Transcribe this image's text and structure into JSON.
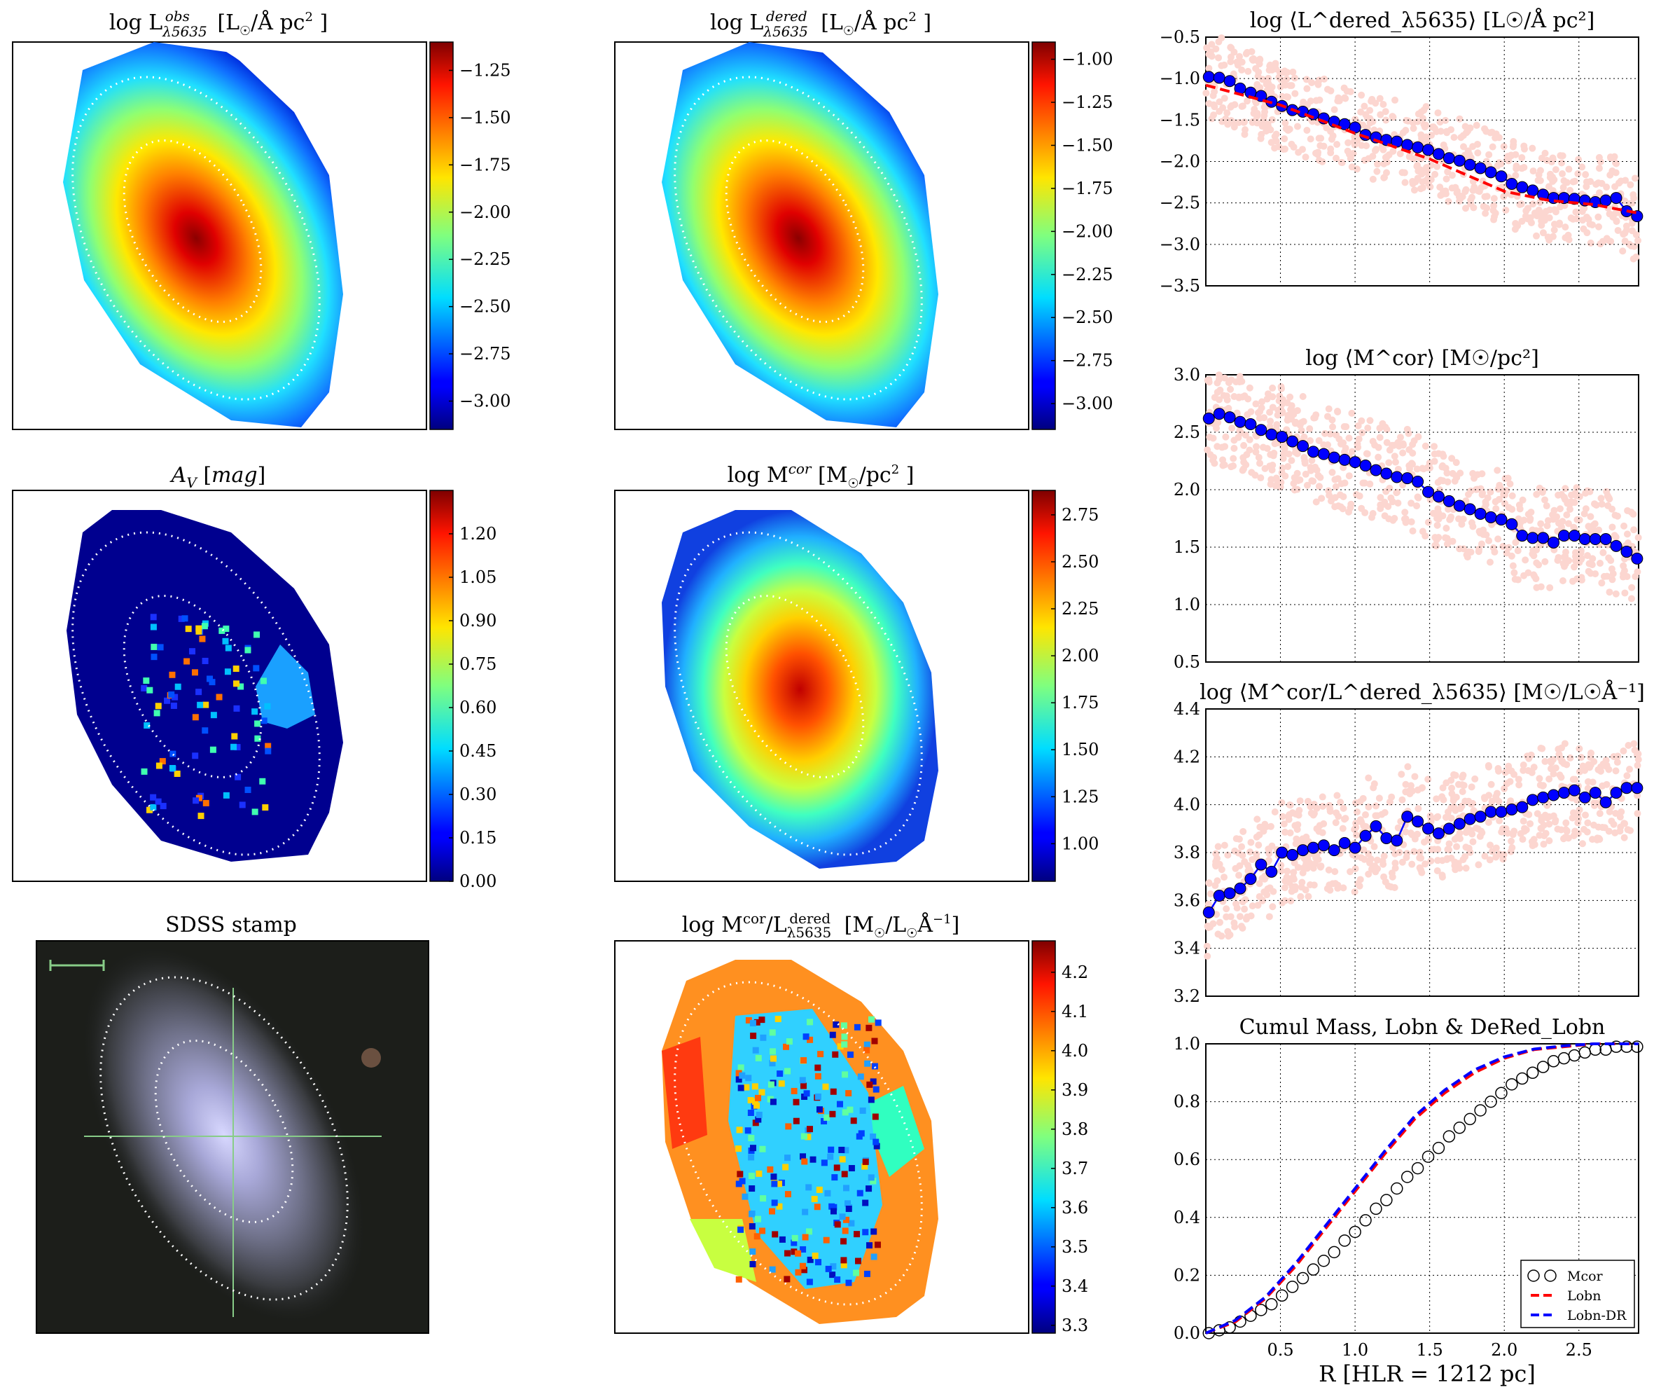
{
  "figure": {
    "xlabel": "R [HLR = 1212 pc]"
  },
  "maps": [
    {
      "id": "lobs",
      "title": "log L^obs_λ5635 [L☉/Å pc²]",
      "colorbar": {
        "min": -3.15,
        "max": -1.1,
        "ticks": [
          "−3.00",
          "−2.75",
          "−2.50",
          "−2.25",
          "−2.00",
          "−1.75",
          "−1.50",
          "−1.25"
        ],
        "tick_values": [
          -3.0,
          -2.75,
          -2.5,
          -2.25,
          -2.0,
          -1.75,
          -1.5,
          -1.25
        ]
      }
    },
    {
      "id": "lder",
      "title": "log L^dered_λ5635 [L☉/Å pc²]",
      "colorbar": {
        "min": -3.15,
        "max": -0.9,
        "ticks": [
          "−3.00",
          "−2.75",
          "−2.50",
          "−2.25",
          "−2.00",
          "−1.75",
          "−1.50",
          "−1.25",
          "−1.00"
        ],
        "tick_values": [
          -3.0,
          -2.75,
          -2.5,
          -2.25,
          -2.0,
          -1.75,
          -1.5,
          -1.25,
          -1.0
        ]
      }
    },
    {
      "id": "av",
      "title": "A_V [mag]",
      "colorbar": {
        "min": 0.0,
        "max": 1.35,
        "ticks": [
          "0.00",
          "0.15",
          "0.30",
          "0.45",
          "0.60",
          "0.75",
          "0.90",
          "1.05",
          "1.20"
        ],
        "tick_values": [
          0.0,
          0.15,
          0.3,
          0.45,
          0.6,
          0.75,
          0.9,
          1.05,
          1.2
        ]
      }
    },
    {
      "id": "mcor",
      "title": "log M^cor [M☉/pc²]",
      "colorbar": {
        "min": 0.8,
        "max": 2.88,
        "ticks": [
          "1.00",
          "1.25",
          "1.50",
          "1.75",
          "2.00",
          "2.25",
          "2.50",
          "2.75"
        ],
        "tick_values": [
          1.0,
          1.25,
          1.5,
          1.75,
          2.0,
          2.25,
          2.5,
          2.75
        ]
      }
    },
    {
      "id": "ml",
      "title": "log M^cor/L^dered_λ5635 [M☉/L☉Å⁻¹]",
      "colorbar": {
        "min": 3.28,
        "max": 4.28,
        "ticks": [
          "3.3",
          "3.4",
          "3.5",
          "3.6",
          "3.7",
          "3.8",
          "3.9",
          "4.0",
          "4.1",
          "4.2"
        ],
        "tick_values": [
          3.3,
          3.4,
          3.5,
          3.6,
          3.7,
          3.8,
          3.9,
          4.0,
          4.1,
          4.2
        ]
      }
    }
  ],
  "stamp": {
    "title": "SDSS stamp"
  },
  "chart_data": [
    {
      "type": "scatter",
      "title": "log ⟨L^dered_λ5635⟩ [L☉/Å pc²]",
      "ylim": [
        -3.5,
        -0.5
      ],
      "yticks": [
        "−3.5",
        "−3.0",
        "−2.5",
        "−2.0",
        "−1.5",
        "−1.0",
        "−0.5"
      ],
      "ytick_values": [
        -3.5,
        -3.0,
        -2.5,
        -2.0,
        -1.5,
        -1.0,
        -0.5
      ],
      "xlim": [
        0.0,
        2.9
      ],
      "grid": true,
      "series": [
        {
          "kind": "points",
          "color": "#0000ff",
          "x": [
            0.02,
            0.09,
            0.16,
            0.23,
            0.3,
            0.37,
            0.44,
            0.51,
            0.58,
            0.65,
            0.72,
            0.79,
            0.86,
            0.93,
            1.0,
            1.07,
            1.14,
            1.21,
            1.28,
            1.35,
            1.42,
            1.49,
            1.56,
            1.63,
            1.7,
            1.77,
            1.84,
            1.91,
            1.98,
            2.05,
            2.12,
            2.19,
            2.26,
            2.33,
            2.4,
            2.47,
            2.54,
            2.61,
            2.68,
            2.75,
            2.82,
            2.89
          ],
          "y": [
            -0.98,
            -0.99,
            -1.03,
            -1.12,
            -1.17,
            -1.21,
            -1.28,
            -1.33,
            -1.38,
            -1.4,
            -1.43,
            -1.48,
            -1.52,
            -1.55,
            -1.59,
            -1.68,
            -1.71,
            -1.74,
            -1.76,
            -1.8,
            -1.83,
            -1.86,
            -1.91,
            -1.96,
            -1.99,
            -2.04,
            -2.08,
            -2.13,
            -2.18,
            -2.27,
            -2.31,
            -2.35,
            -2.4,
            -2.44,
            -2.44,
            -2.45,
            -2.47,
            -2.49,
            -2.47,
            -2.44,
            -2.6,
            -2.66
          ]
        },
        {
          "kind": "dashed-line",
          "color": "#ff0000",
          "x": [
            0.0,
            0.5,
            1.0,
            1.5,
            2.0,
            2.3,
            2.6,
            2.89
          ],
          "y": [
            -1.08,
            -1.32,
            -1.66,
            -1.97,
            -2.36,
            -2.47,
            -2.52,
            -2.62
          ]
        }
      ]
    },
    {
      "type": "scatter",
      "title": "log ⟨M^cor⟩ [M☉/pc²]",
      "ylim": [
        0.5,
        3.0
      ],
      "yticks": [
        "0.5",
        "1.0",
        "1.5",
        "2.0",
        "2.5",
        "3.0"
      ],
      "ytick_values": [
        0.5,
        1.0,
        1.5,
        2.0,
        2.5,
        3.0
      ],
      "xlim": [
        0.0,
        2.9
      ],
      "grid": true,
      "series": [
        {
          "kind": "points",
          "color": "#0000ff",
          "x": [
            0.02,
            0.09,
            0.16,
            0.23,
            0.3,
            0.37,
            0.44,
            0.51,
            0.58,
            0.65,
            0.72,
            0.79,
            0.86,
            0.93,
            1.0,
            1.07,
            1.14,
            1.21,
            1.28,
            1.35,
            1.42,
            1.49,
            1.56,
            1.63,
            1.7,
            1.77,
            1.84,
            1.91,
            1.98,
            2.05,
            2.12,
            2.19,
            2.26,
            2.33,
            2.4,
            2.47,
            2.54,
            2.61,
            2.68,
            2.75,
            2.82,
            2.89
          ],
          "y": [
            2.62,
            2.66,
            2.63,
            2.59,
            2.57,
            2.52,
            2.48,
            2.46,
            2.42,
            2.38,
            2.33,
            2.31,
            2.28,
            2.26,
            2.24,
            2.21,
            2.17,
            2.14,
            2.11,
            2.1,
            2.07,
            1.98,
            1.94,
            1.9,
            1.86,
            1.83,
            1.79,
            1.76,
            1.74,
            1.7,
            1.6,
            1.58,
            1.58,
            1.54,
            1.6,
            1.6,
            1.57,
            1.57,
            1.57,
            1.51,
            1.46,
            1.4
          ]
        }
      ]
    },
    {
      "type": "scatter",
      "title": "log ⟨M^cor/L^dered_λ5635⟩ [M☉/L☉Å⁻¹]",
      "ylim": [
        3.2,
        4.4
      ],
      "yticks": [
        "3.2",
        "3.4",
        "3.6",
        "3.8",
        "4.0",
        "4.2",
        "4.4"
      ],
      "ytick_values": [
        3.2,
        3.4,
        3.6,
        3.8,
        4.0,
        4.2,
        4.4
      ],
      "xlim": [
        0.0,
        2.9
      ],
      "grid": true,
      "series": [
        {
          "kind": "points",
          "color": "#0000ff",
          "x": [
            0.02,
            0.09,
            0.16,
            0.23,
            0.3,
            0.37,
            0.44,
            0.51,
            0.58,
            0.65,
            0.72,
            0.79,
            0.86,
            0.93,
            1.0,
            1.07,
            1.14,
            1.21,
            1.28,
            1.35,
            1.42,
            1.49,
            1.56,
            1.63,
            1.7,
            1.77,
            1.84,
            1.91,
            1.98,
            2.05,
            2.12,
            2.19,
            2.26,
            2.33,
            2.4,
            2.47,
            2.54,
            2.61,
            2.68,
            2.75,
            2.82,
            2.89
          ],
          "y": [
            3.55,
            3.62,
            3.63,
            3.65,
            3.69,
            3.75,
            3.72,
            3.8,
            3.79,
            3.81,
            3.82,
            3.83,
            3.81,
            3.84,
            3.82,
            3.87,
            3.91,
            3.86,
            3.85,
            3.95,
            3.93,
            3.9,
            3.88,
            3.9,
            3.92,
            3.94,
            3.95,
            3.97,
            3.97,
            3.98,
            3.99,
            4.02,
            4.03,
            4.04,
            4.05,
            4.06,
            4.03,
            4.05,
            4.01,
            4.05,
            4.07,
            4.07
          ]
        }
      ]
    },
    {
      "type": "line",
      "title": "Cumul Mass, Lobn & DeRed_Lobn",
      "xlabel": "R [HLR = 1212 pc]",
      "ylim": [
        0.0,
        1.0
      ],
      "yticks": [
        "0.0",
        "0.2",
        "0.4",
        "0.6",
        "0.8",
        "1.0"
      ],
      "ytick_values": [
        0.0,
        0.2,
        0.4,
        0.6,
        0.8,
        1.0
      ],
      "xlim": [
        0.0,
        2.9
      ],
      "xticks": [
        "0.5",
        "1.0",
        "1.5",
        "2.0",
        "2.5"
      ],
      "xtick_values": [
        0.5,
        1.0,
        1.5,
        2.0,
        2.5
      ],
      "grid": true,
      "legend": {
        "position": "lower-right",
        "entries": [
          "Mcor",
          "Lobn",
          "Lobn-DR"
        ]
      },
      "series": [
        {
          "name": "Mcor",
          "kind": "open-circles",
          "color": "#000000",
          "x": [
            0.02,
            0.09,
            0.16,
            0.23,
            0.3,
            0.37,
            0.44,
            0.51,
            0.58,
            0.65,
            0.72,
            0.79,
            0.86,
            0.93,
            1.0,
            1.07,
            1.14,
            1.21,
            1.28,
            1.35,
            1.42,
            1.49,
            1.56,
            1.63,
            1.7,
            1.77,
            1.84,
            1.91,
            1.98,
            2.05,
            2.12,
            2.19,
            2.26,
            2.33,
            2.4,
            2.47,
            2.54,
            2.61,
            2.68,
            2.75,
            2.82,
            2.89
          ],
          "y": [
            0.0,
            0.01,
            0.02,
            0.04,
            0.06,
            0.08,
            0.1,
            0.13,
            0.16,
            0.19,
            0.22,
            0.25,
            0.28,
            0.32,
            0.35,
            0.39,
            0.43,
            0.46,
            0.5,
            0.54,
            0.57,
            0.61,
            0.64,
            0.68,
            0.71,
            0.74,
            0.77,
            0.8,
            0.83,
            0.86,
            0.88,
            0.9,
            0.92,
            0.94,
            0.95,
            0.96,
            0.97,
            0.98,
            0.98,
            0.99,
            0.99,
            0.99
          ]
        },
        {
          "name": "Lobn",
          "kind": "dashed-line",
          "color": "#ff0000",
          "x": [
            0.0,
            0.2,
            0.4,
            0.6,
            0.8,
            1.0,
            1.2,
            1.4,
            1.6,
            1.8,
            2.0,
            2.2,
            2.4,
            2.6,
            2.8,
            2.9
          ],
          "y": [
            0.0,
            0.04,
            0.12,
            0.23,
            0.36,
            0.49,
            0.62,
            0.74,
            0.83,
            0.9,
            0.95,
            0.98,
            0.99,
            1.0,
            1.0,
            1.0
          ]
        },
        {
          "name": "Lobn-DR",
          "kind": "dashed-line",
          "color": "#0000ff",
          "x": [
            0.0,
            0.2,
            0.4,
            0.6,
            0.8,
            1.0,
            1.2,
            1.4,
            1.6,
            1.8,
            2.0,
            2.2,
            2.4,
            2.6,
            2.8,
            2.9
          ],
          "y": [
            0.0,
            0.045,
            0.125,
            0.24,
            0.37,
            0.5,
            0.63,
            0.75,
            0.84,
            0.91,
            0.955,
            0.982,
            0.993,
            1.0,
            1.0,
            1.0
          ]
        }
      ]
    }
  ]
}
